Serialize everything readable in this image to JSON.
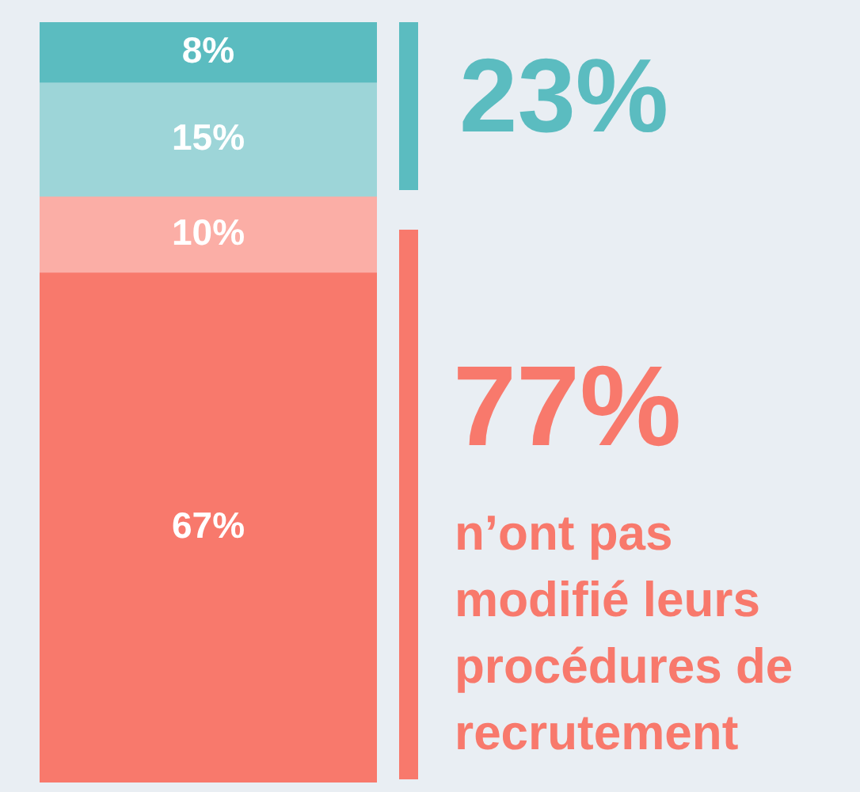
{
  "chart_data": {
    "type": "bar",
    "stacked": true,
    "categories": [
      null
    ],
    "tick_labels": false,
    "legend": false,
    "series": [
      {
        "color": "#f8796c",
        "values": [
          67
        ],
        "value_labels": [
          "67%"
        ]
      },
      {
        "color": "#fbaea6",
        "values": [
          10
        ],
        "value_labels": [
          "10%"
        ]
      },
      {
        "color": "#9dd5d8",
        "values": [
          15
        ],
        "value_labels": [
          "15%"
        ]
      },
      {
        "color": "#5bbcc0",
        "values": [
          8
        ],
        "value_labels": [
          "8%"
        ]
      }
    ],
    "annotations": [
      "23%",
      "77%",
      "n’ont pas modifié leurs procédures de recrutement"
    ]
  }
}
